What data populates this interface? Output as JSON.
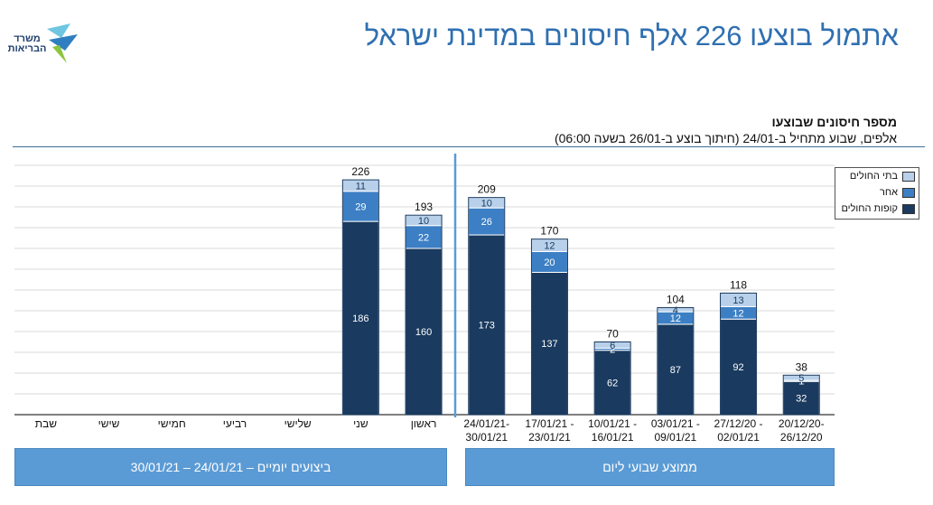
{
  "page": {
    "title": "אתמול בוצעו 226 אלף חיסונים במדינת ישראל",
    "logo_text": "משרד הבריאות"
  },
  "header": {
    "chart_title": "מספר חיסונים שבוצעו",
    "chart_subtitle": "אלפים, שבוע מתחיל ב-24/01 (חיתוך בוצע ב-26/01 בשעה 06:00)"
  },
  "sections": {
    "daily_label": "ביצועים יומיים – 24/01/21 – 30/01/21",
    "weekly_label": "ממוצע שבועי ליום"
  },
  "legend": {
    "items": [
      {
        "label": "בתי החולים",
        "color": "#b8d0ea"
      },
      {
        "label": "אחר",
        "color": "#3c7fc4"
      },
      {
        "label": "קופות החולים",
        "color": "#1a3a5f"
      }
    ]
  },
  "chart_data": {
    "type": "bar",
    "stacked": true,
    "title": "מספר חיסונים שבוצעו",
    "unit": "אלפים",
    "categories": [
      "שבת",
      "שישי",
      "חמישי",
      "רביעי",
      "שלישי",
      "שני",
      "ראשון",
      "24/01/21-\n30/01/21",
      "17/01/21 -\n23/01/21",
      "10/01/21 -\n16/01/21",
      "03/01/21 -\n09/01/21",
      "27/12/20 -\n02/01/21",
      "20/12/20-\n26/12/20"
    ],
    "series": [
      {
        "name": "קופות החולים",
        "color": "#1a3a5f",
        "values": [
          null,
          null,
          null,
          null,
          null,
          186,
          160,
          173,
          137,
          62,
          87,
          92,
          32
        ]
      },
      {
        "name": "אחר",
        "color": "#3c7fc4",
        "values": [
          null,
          null,
          null,
          null,
          null,
          29,
          22,
          26,
          20,
          2,
          12,
          12,
          1
        ]
      },
      {
        "name": "בתי החולים",
        "color": "#b8d0ea",
        "values": [
          null,
          null,
          null,
          null,
          null,
          11,
          10,
          10,
          12,
          6,
          4,
          13,
          5
        ]
      }
    ],
    "totals": [
      null,
      null,
      null,
      null,
      null,
      226,
      193,
      209,
      170,
      70,
      104,
      118,
      38
    ],
    "ylim": [
      0,
      240
    ],
    "grid": true,
    "legend_position": "top-right"
  }
}
